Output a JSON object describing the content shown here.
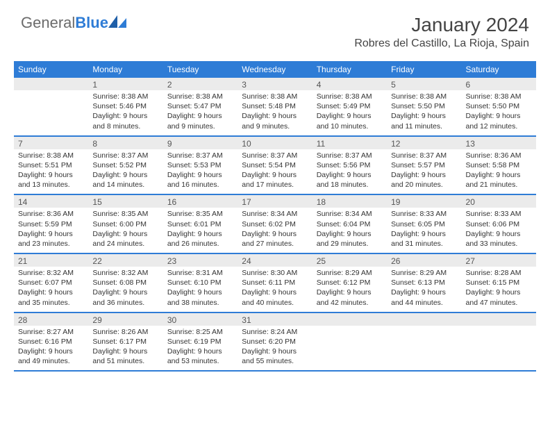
{
  "brand": {
    "part1": "General",
    "part2": "Blue"
  },
  "title": "January 2024",
  "location": "Robres del Castillo, La Rioja, Spain",
  "colors": {
    "header_bg": "#2e7cd6",
    "header_text": "#ffffff",
    "daynum_bg": "#ebebeb",
    "border": "#2e7cd6",
    "text": "#333333",
    "logo_gray": "#6b6b6b",
    "logo_blue": "#2e7cd6",
    "page_bg": "#ffffff"
  },
  "typography": {
    "month_title_size": 28,
    "location_size": 16,
    "dow_size": 12,
    "cell_size": 10.5,
    "daynum_size": 12
  },
  "dow": [
    "Sunday",
    "Monday",
    "Tuesday",
    "Wednesday",
    "Thursday",
    "Friday",
    "Saturday"
  ],
  "weeks": [
    [
      {
        "n": "",
        "sr": "",
        "ss": "",
        "dl": ""
      },
      {
        "n": "1",
        "sr": "Sunrise: 8:38 AM",
        "ss": "Sunset: 5:46 PM",
        "dl": "Daylight: 9 hours and 8 minutes."
      },
      {
        "n": "2",
        "sr": "Sunrise: 8:38 AM",
        "ss": "Sunset: 5:47 PM",
        "dl": "Daylight: 9 hours and 9 minutes."
      },
      {
        "n": "3",
        "sr": "Sunrise: 8:38 AM",
        "ss": "Sunset: 5:48 PM",
        "dl": "Daylight: 9 hours and 9 minutes."
      },
      {
        "n": "4",
        "sr": "Sunrise: 8:38 AM",
        "ss": "Sunset: 5:49 PM",
        "dl": "Daylight: 9 hours and 10 minutes."
      },
      {
        "n": "5",
        "sr": "Sunrise: 8:38 AM",
        "ss": "Sunset: 5:50 PM",
        "dl": "Daylight: 9 hours and 11 minutes."
      },
      {
        "n": "6",
        "sr": "Sunrise: 8:38 AM",
        "ss": "Sunset: 5:50 PM",
        "dl": "Daylight: 9 hours and 12 minutes."
      }
    ],
    [
      {
        "n": "7",
        "sr": "Sunrise: 8:38 AM",
        "ss": "Sunset: 5:51 PM",
        "dl": "Daylight: 9 hours and 13 minutes."
      },
      {
        "n": "8",
        "sr": "Sunrise: 8:37 AM",
        "ss": "Sunset: 5:52 PM",
        "dl": "Daylight: 9 hours and 14 minutes."
      },
      {
        "n": "9",
        "sr": "Sunrise: 8:37 AM",
        "ss": "Sunset: 5:53 PM",
        "dl": "Daylight: 9 hours and 16 minutes."
      },
      {
        "n": "10",
        "sr": "Sunrise: 8:37 AM",
        "ss": "Sunset: 5:54 PM",
        "dl": "Daylight: 9 hours and 17 minutes."
      },
      {
        "n": "11",
        "sr": "Sunrise: 8:37 AM",
        "ss": "Sunset: 5:56 PM",
        "dl": "Daylight: 9 hours and 18 minutes."
      },
      {
        "n": "12",
        "sr": "Sunrise: 8:37 AM",
        "ss": "Sunset: 5:57 PM",
        "dl": "Daylight: 9 hours and 20 minutes."
      },
      {
        "n": "13",
        "sr": "Sunrise: 8:36 AM",
        "ss": "Sunset: 5:58 PM",
        "dl": "Daylight: 9 hours and 21 minutes."
      }
    ],
    [
      {
        "n": "14",
        "sr": "Sunrise: 8:36 AM",
        "ss": "Sunset: 5:59 PM",
        "dl": "Daylight: 9 hours and 23 minutes."
      },
      {
        "n": "15",
        "sr": "Sunrise: 8:35 AM",
        "ss": "Sunset: 6:00 PM",
        "dl": "Daylight: 9 hours and 24 minutes."
      },
      {
        "n": "16",
        "sr": "Sunrise: 8:35 AM",
        "ss": "Sunset: 6:01 PM",
        "dl": "Daylight: 9 hours and 26 minutes."
      },
      {
        "n": "17",
        "sr": "Sunrise: 8:34 AM",
        "ss": "Sunset: 6:02 PM",
        "dl": "Daylight: 9 hours and 27 minutes."
      },
      {
        "n": "18",
        "sr": "Sunrise: 8:34 AM",
        "ss": "Sunset: 6:04 PM",
        "dl": "Daylight: 9 hours and 29 minutes."
      },
      {
        "n": "19",
        "sr": "Sunrise: 8:33 AM",
        "ss": "Sunset: 6:05 PM",
        "dl": "Daylight: 9 hours and 31 minutes."
      },
      {
        "n": "20",
        "sr": "Sunrise: 8:33 AM",
        "ss": "Sunset: 6:06 PM",
        "dl": "Daylight: 9 hours and 33 minutes."
      }
    ],
    [
      {
        "n": "21",
        "sr": "Sunrise: 8:32 AM",
        "ss": "Sunset: 6:07 PM",
        "dl": "Daylight: 9 hours and 35 minutes."
      },
      {
        "n": "22",
        "sr": "Sunrise: 8:32 AM",
        "ss": "Sunset: 6:08 PM",
        "dl": "Daylight: 9 hours and 36 minutes."
      },
      {
        "n": "23",
        "sr": "Sunrise: 8:31 AM",
        "ss": "Sunset: 6:10 PM",
        "dl": "Daylight: 9 hours and 38 minutes."
      },
      {
        "n": "24",
        "sr": "Sunrise: 8:30 AM",
        "ss": "Sunset: 6:11 PM",
        "dl": "Daylight: 9 hours and 40 minutes."
      },
      {
        "n": "25",
        "sr": "Sunrise: 8:29 AM",
        "ss": "Sunset: 6:12 PM",
        "dl": "Daylight: 9 hours and 42 minutes."
      },
      {
        "n": "26",
        "sr": "Sunrise: 8:29 AM",
        "ss": "Sunset: 6:13 PM",
        "dl": "Daylight: 9 hours and 44 minutes."
      },
      {
        "n": "27",
        "sr": "Sunrise: 8:28 AM",
        "ss": "Sunset: 6:15 PM",
        "dl": "Daylight: 9 hours and 47 minutes."
      }
    ],
    [
      {
        "n": "28",
        "sr": "Sunrise: 8:27 AM",
        "ss": "Sunset: 6:16 PM",
        "dl": "Daylight: 9 hours and 49 minutes."
      },
      {
        "n": "29",
        "sr": "Sunrise: 8:26 AM",
        "ss": "Sunset: 6:17 PM",
        "dl": "Daylight: 9 hours and 51 minutes."
      },
      {
        "n": "30",
        "sr": "Sunrise: 8:25 AM",
        "ss": "Sunset: 6:19 PM",
        "dl": "Daylight: 9 hours and 53 minutes."
      },
      {
        "n": "31",
        "sr": "Sunrise: 8:24 AM",
        "ss": "Sunset: 6:20 PM",
        "dl": "Daylight: 9 hours and 55 minutes."
      },
      {
        "n": "",
        "sr": "",
        "ss": "",
        "dl": ""
      },
      {
        "n": "",
        "sr": "",
        "ss": "",
        "dl": ""
      },
      {
        "n": "",
        "sr": "",
        "ss": "",
        "dl": ""
      }
    ]
  ]
}
